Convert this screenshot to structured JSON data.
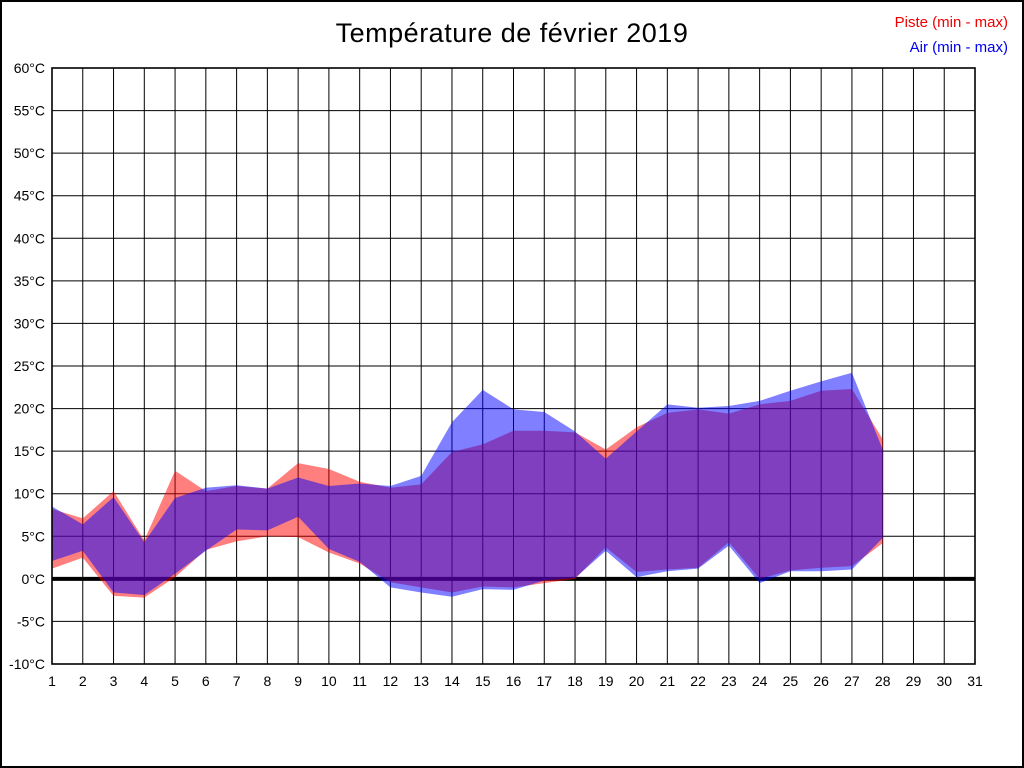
{
  "title": "Température de février 2019",
  "legend": {
    "items": [
      {
        "label": "Piste (min - max)",
        "color": "#ee0000"
      },
      {
        "label": "Air (min - max)",
        "color": "#0000ee"
      }
    ],
    "position": "top-right"
  },
  "colors": {
    "piste_band": "#ff0000",
    "air_band": "#0000ff",
    "band_opacity": 0.5,
    "piste_rendered_on_white": "#ff8080",
    "air_rendered_on_white": "#8080ff",
    "overlap_rendered": "#8040c0",
    "grid": "#000000",
    "zero_line": "#000000",
    "background": "#ffffff"
  },
  "chart_data": {
    "type": "area",
    "subtype": "min-max range bands, two overlapping series (alpha blended)",
    "title": "Température de février 2019",
    "xlabel": "",
    "ylabel": "",
    "xlim": [
      1,
      31
    ],
    "ylim": [
      -10,
      60
    ],
    "ytick_step": 5,
    "grid": true,
    "zero_line_bold": true,
    "legend_position": "top-right",
    "xticks": [
      1,
      2,
      3,
      4,
      5,
      6,
      7,
      8,
      9,
      10,
      11,
      12,
      13,
      14,
      15,
      16,
      17,
      18,
      19,
      20,
      21,
      22,
      23,
      24,
      25,
      26,
      27,
      28,
      29,
      30,
      31
    ],
    "xtick_labels": [
      "1",
      "2",
      "3",
      "4",
      "5",
      "6",
      "7",
      "8",
      "9",
      "10",
      "11",
      "12",
      "13",
      "14",
      "15",
      "16",
      "17",
      "18",
      "19",
      "20",
      "21",
      "22",
      "23",
      "24",
      "25",
      "26",
      "27",
      "28",
      "29",
      "30",
      "31"
    ],
    "yticks": [
      60,
      55,
      50,
      45,
      40,
      35,
      30,
      25,
      20,
      15,
      10,
      5,
      0,
      -5,
      -10
    ],
    "ytick_labels": [
      "60°C",
      "55°C",
      "50°C",
      "45°C",
      "40°C",
      "35°C",
      "30°C",
      "25°C",
      "20°C",
      "15°C",
      "10°C",
      "5°C",
      "0°C",
      "-5°C",
      "-10°C"
    ],
    "days_with_data": [
      1,
      2,
      3,
      4,
      5,
      6,
      7,
      8,
      9,
      10,
      11,
      12,
      13,
      14,
      15,
      16,
      17,
      18,
      19,
      20,
      21,
      22,
      23,
      24,
      25,
      26,
      27,
      28
    ],
    "series": [
      {
        "name": "Piste (min - max)",
        "color": "#ff0000",
        "min": [
          1.2,
          2.5,
          -2.0,
          -2.2,
          0.2,
          3.4,
          4.4,
          5.0,
          4.9,
          3.1,
          1.8,
          -0.4,
          -1.0,
          -1.6,
          -0.9,
          -1.0,
          -0.5,
          0.0,
          3.7,
          0.8,
          1.1,
          1.3,
          4.3,
          0.0,
          1.0,
          1.3,
          1.5,
          4.2
        ],
        "max": [
          8.2,
          7.1,
          10.3,
          4.5,
          12.7,
          10.3,
          10.9,
          10.6,
          13.6,
          12.9,
          11.4,
          10.7,
          11.1,
          14.9,
          15.8,
          17.4,
          17.4,
          17.2,
          15.2,
          17.8,
          19.5,
          19.9,
          19.4,
          20.5,
          20.9,
          22.1,
          22.3,
          16.4
        ]
      },
      {
        "name": "Air (min - max)",
        "color": "#0000ff",
        "min": [
          2.1,
          3.3,
          -1.6,
          -1.9,
          0.6,
          3.3,
          5.8,
          5.7,
          7.3,
          3.5,
          2.0,
          -1.0,
          -1.6,
          -2.1,
          -1.2,
          -1.3,
          -0.2,
          0.1,
          3.3,
          0.2,
          0.9,
          1.2,
          3.9,
          -0.5,
          0.9,
          0.9,
          1.1,
          4.8
        ],
        "max": [
          8.5,
          6.4,
          9.6,
          4.3,
          9.5,
          10.7,
          11.0,
          10.6,
          11.9,
          10.9,
          11.2,
          10.9,
          12.1,
          18.4,
          22.2,
          19.9,
          19.6,
          17.3,
          14.1,
          17.3,
          20.5,
          20.1,
          20.3,
          20.9,
          22.1,
          23.2,
          24.2,
          15.2
        ]
      }
    ]
  }
}
